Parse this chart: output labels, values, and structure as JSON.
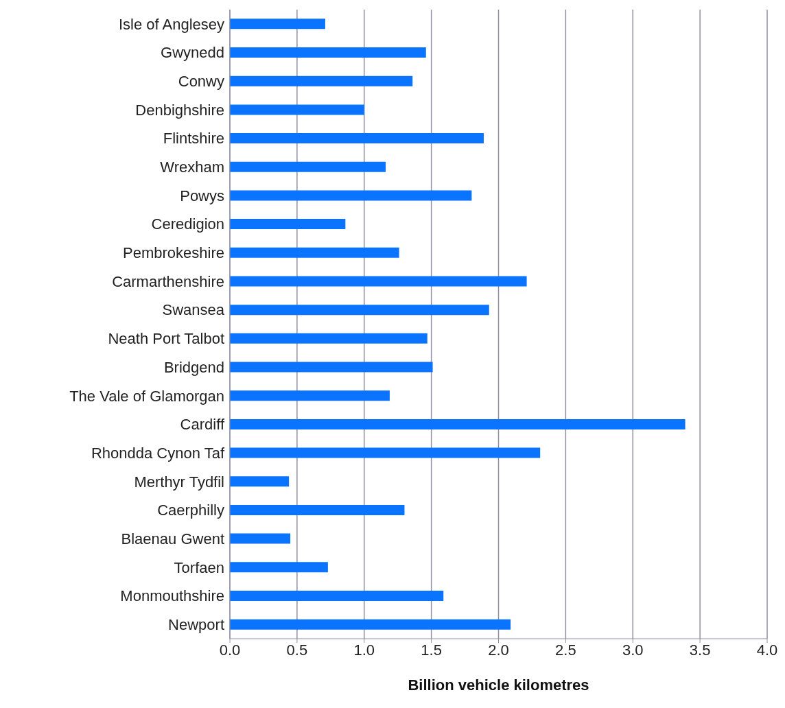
{
  "chart_data": {
    "type": "bar",
    "orientation": "horizontal",
    "xlabel": "Billion vehicle kilometres",
    "categories": [
      "Isle of Anglesey",
      "Gwynedd",
      "Conwy",
      "Denbighshire",
      "Flintshire",
      "Wrexham",
      "Powys",
      "Ceredigion",
      "Pembrokeshire",
      "Carmarthenshire",
      "Swansea",
      "Neath Port Talbot",
      "Bridgend",
      "The Vale of Glamorgan",
      "Cardiff",
      "Rhondda Cynon Taf",
      "Merthyr Tydfil",
      "Caerphilly",
      "Blaenau Gwent",
      "Torfaen",
      "Monmouthshire",
      "Newport"
    ],
    "values": [
      0.71,
      1.46,
      1.36,
      1.0,
      1.89,
      1.16,
      1.8,
      0.86,
      1.26,
      2.21,
      1.93,
      1.47,
      1.51,
      1.19,
      3.39,
      2.31,
      0.44,
      1.3,
      0.45,
      0.73,
      1.59,
      2.09
    ],
    "color": "#0b74ff",
    "xlim": [
      0,
      4
    ],
    "xticks": [
      {
        "value": 0,
        "label": "0.0"
      },
      {
        "value": 0.5,
        "label": "0.5"
      },
      {
        "value": 1,
        "label": "1.0"
      },
      {
        "value": 1.5,
        "label": "1.5"
      },
      {
        "value": 2,
        "label": "2.0"
      },
      {
        "value": 2.5,
        "label": "2.5"
      },
      {
        "value": 3,
        "label": "3.0"
      },
      {
        "value": 3.5,
        "label": "3.5"
      },
      {
        "value": 4,
        "label": "4.0"
      }
    ],
    "grid": "x"
  }
}
